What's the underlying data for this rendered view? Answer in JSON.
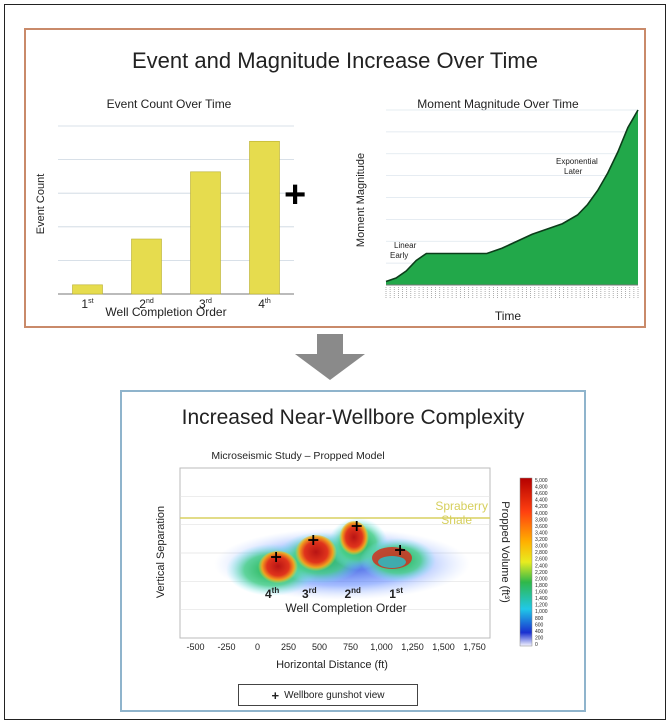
{
  "top_panel": {
    "title": "Event and Magnitude Increase Over Time",
    "left_chart": {
      "title": "Event Count Over Time",
      "ylabel": "Event Count",
      "xlabel": "Well Completion Order"
    },
    "right_chart": {
      "title": "Moment Magnitude Over Time",
      "ylabel": "Moment Magnitude",
      "xlabel": "Time",
      "annotation_linear": [
        "Linear",
        "Early"
      ],
      "annotation_exp": [
        "Exponential",
        "Later"
      ]
    },
    "plus_symbol": "+"
  },
  "bottom_panel": {
    "title": "Increased Near-Wellbore Complexity",
    "chart_title": "Microseismic Study – Propped Model",
    "ylabel": "Vertical Separation",
    "xlabel": "Horizontal Distance (ft)",
    "inner_label": "Well Completion Order",
    "shale_label": [
      "Spraberry",
      "Shale"
    ],
    "colorbar_label": "Propped Volume (ft³)",
    "colorbar_ticks": [
      "5,000",
      "4,800",
      "4,600",
      "4,400",
      "4,200",
      "4,000",
      "3,800",
      "3,600",
      "3,400",
      "3,200",
      "3,000",
      "2,800",
      "2,600",
      "2,400",
      "2,200",
      "2,000",
      "1,800",
      "1,600",
      "1,400",
      "1,200",
      "1,000",
      "800",
      "600",
      "400",
      "200",
      "0"
    ],
    "legend": "Wellbore gunshot view",
    "legend_marker": "+"
  },
  "chart_data": [
    {
      "type": "bar",
      "title": "Event Count Over Time",
      "xlabel": "Well Completion Order",
      "ylabel": "Event Count",
      "categories": [
        "1st",
        "2nd",
        "3rd",
        "4th"
      ],
      "values": [
        3,
        18,
        40,
        50
      ],
      "ylim": [
        0,
        55
      ],
      "color": "#e6dc4e"
    },
    {
      "type": "area",
      "title": "Moment Magnitude Over Time",
      "xlabel": "Time",
      "ylabel": "Moment Magnitude",
      "x": [
        0,
        4,
        8,
        12,
        16,
        22,
        28,
        34,
        40,
        46,
        52,
        58,
        64,
        70,
        76,
        80,
        84,
        88,
        92,
        96,
        100
      ],
      "y": [
        2,
        4,
        8,
        14,
        18,
        18,
        18,
        18,
        18,
        21,
        25,
        29,
        32,
        35,
        40,
        46,
        54,
        64,
        76,
        90,
        100
      ],
      "ylim": [
        0,
        100
      ],
      "color": "#22a84a"
    },
    {
      "type": "heatmap",
      "title": "Microseismic Study – Propped Model",
      "xlabel": "Horizontal Distance (ft)",
      "ylabel": "Vertical Separation",
      "xticks": [
        "-500",
        "-250",
        "0",
        "250",
        "500",
        "750",
        "1,000",
        "1,250",
        "1,500",
        "1,750"
      ],
      "wells": [
        {
          "label": "4th",
          "x": 150
        },
        {
          "label": "3rd",
          "x": 450
        },
        {
          "label": "2nd",
          "x": 800
        },
        {
          "label": "1st",
          "x": 1150
        }
      ],
      "colorbar_range": [
        0,
        5000
      ]
    }
  ]
}
